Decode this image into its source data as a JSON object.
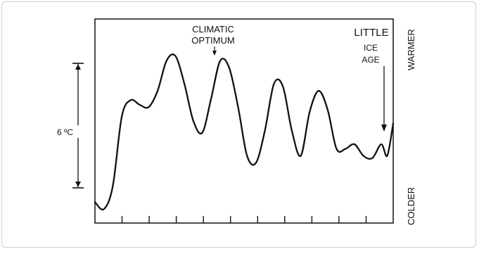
{
  "chart_data": {
    "type": "line",
    "title": "",
    "xlabel": "",
    "ylabel": "",
    "scale_label": "6 ºC",
    "y_axis_labels": {
      "top": "WARMER",
      "bottom": "COLDER"
    },
    "x_ticks": 10,
    "ylim": [
      -1.2,
      7.6
    ],
    "xlim": [
      0,
      100
    ],
    "series": [
      {
        "values_note": "",
        "x": [
          0,
          3,
          6,
          9,
          12,
          15,
          18,
          21,
          24,
          27,
          30,
          33,
          36,
          39,
          42,
          45,
          48,
          51,
          54,
          57,
          60,
          63,
          66,
          69,
          72,
          75,
          78,
          81,
          84,
          87,
          90,
          93,
          96,
          98,
          100
        ],
        "values": [
          -0.3,
          -0.6,
          0.4,
          3.4,
          4.1,
          3.9,
          3.8,
          4.5,
          5.8,
          6.0,
          4.8,
          3.2,
          2.7,
          4.2,
          5.8,
          5.5,
          3.8,
          1.7,
          1.4,
          2.8,
          4.8,
          4.7,
          2.8,
          1.7,
          3.6,
          4.5,
          3.7,
          2.0,
          2.0,
          2.2,
          1.7,
          1.6,
          2.2,
          1.7,
          3.1
        ]
      }
    ],
    "annotations": [
      {
        "text_lines": [
          "CLIMATIC",
          "OPTIMUM"
        ],
        "arrow_to_x": 30
      },
      {
        "text_lines": [
          "LITTLE",
          "ICE",
          "AGE"
        ],
        "arrow_to_x": 96
      }
    ]
  }
}
